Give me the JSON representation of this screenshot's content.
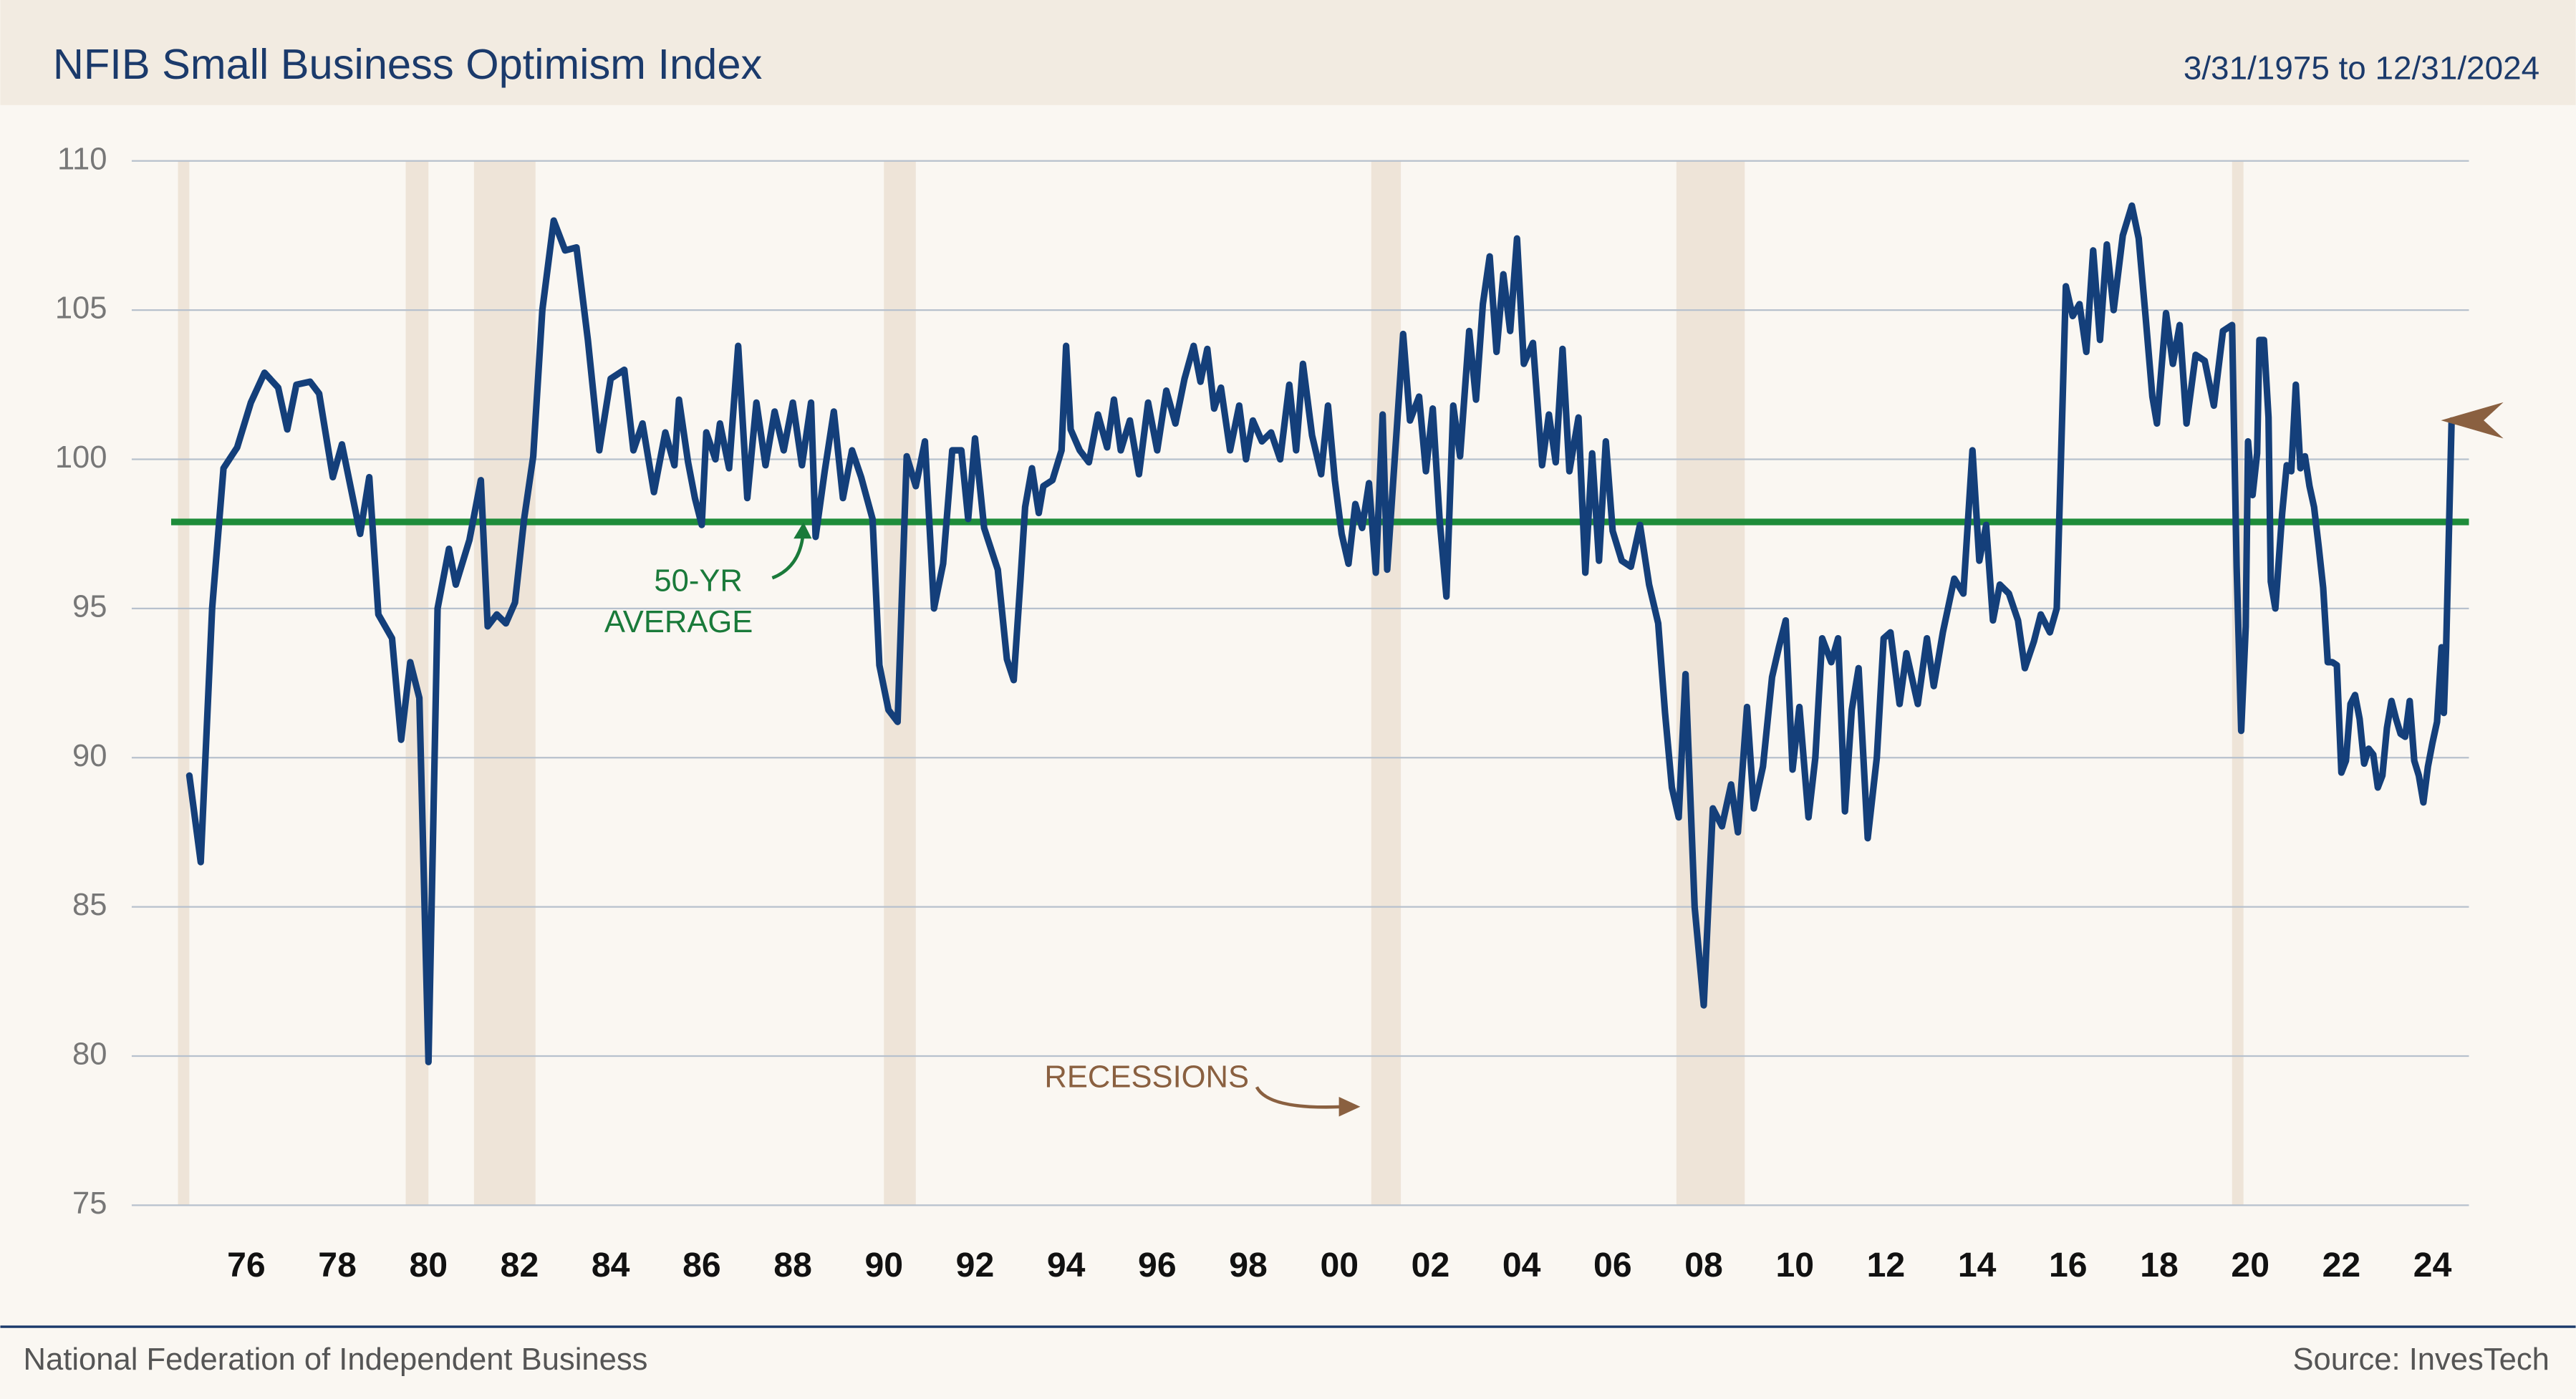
{
  "chart_data": {
    "type": "line",
    "title": "NFIB Small Business Optimism Index",
    "subtitle": "3/31/1975 to 12/31/2024",
    "source_left": "National Federation of Independent Business",
    "source_right": "Source: InvesTech",
    "annotations": [
      "50-YR",
      "AVERAGE",
      "RECESSIONS"
    ],
    "color": "#143f7a",
    "average": 97.9,
    "average_color": "#1e8c3a",
    "recessions": [
      [
        1975.0,
        1975.25
      ],
      [
        1980.0,
        1980.5
      ],
      [
        1981.5,
        1982.85
      ],
      [
        1990.5,
        1991.2
      ],
      [
        2001.2,
        2001.85
      ],
      [
        2007.9,
        2009.4
      ],
      [
        2020.1,
        2020.35
      ]
    ],
    "grid": true,
    "xlim": [
      1974.85,
      2025.3
    ],
    "ylim": [
      75,
      110
    ],
    "yticks": [
      75,
      80,
      85,
      90,
      95,
      100,
      105,
      110
    ],
    "xticks": [
      {
        "value": 1976,
        "label": "76"
      },
      {
        "value": 1978,
        "label": "78"
      },
      {
        "value": 1980,
        "label": "80"
      },
      {
        "value": 1982,
        "label": "82"
      },
      {
        "value": 1984,
        "label": "84"
      },
      {
        "value": 1986,
        "label": "86"
      },
      {
        "value": 1988,
        "label": "88"
      },
      {
        "value": 1990,
        "label": "90"
      },
      {
        "value": 1992,
        "label": "92"
      },
      {
        "value": 1994,
        "label": "94"
      },
      {
        "value": 1996,
        "label": "96"
      },
      {
        "value": 1998,
        "label": "98"
      },
      {
        "value": 2000,
        "label": "00"
      },
      {
        "value": 2002,
        "label": "02"
      },
      {
        "value": 2004,
        "label": "04"
      },
      {
        "value": 2006,
        "label": "06"
      },
      {
        "value": 2008,
        "label": "08"
      },
      {
        "value": 2010,
        "label": "10"
      },
      {
        "value": 2012,
        "label": "12"
      },
      {
        "value": 2014,
        "label": "14"
      },
      {
        "value": 2016,
        "label": "16"
      },
      {
        "value": 2018,
        "label": "18"
      },
      {
        "value": 2020,
        "label": "20"
      },
      {
        "value": 2022,
        "label": "22"
      },
      {
        "value": 2024,
        "label": "24"
      }
    ],
    "x": [
      1975.25,
      1975.5,
      1975.75,
      1976.0,
      1976.3,
      1976.6,
      1976.9,
      1977.2,
      1977.4,
      1977.6,
      1977.9,
      1978.1,
      1978.4,
      1978.6,
      1979.0,
      1979.2,
      1979.4,
      1979.7,
      1979.9,
      1980.1,
      1980.3,
      1980.5,
      1980.7,
      1980.95,
      1981.1,
      1981.4,
      1981.65,
      1981.8,
      1982.0,
      1982.2,
      1982.4,
      1982.6,
      1982.8,
      1983.0,
      1983.25,
      1983.5,
      1983.75,
      1984.0,
      1984.25,
      1984.5,
      1984.8,
      1985.0,
      1985.2,
      1985.45,
      1985.7,
      1985.9,
      1986.0,
      1986.2,
      1986.35,
      1986.5,
      1986.6,
      1986.8,
      1986.9,
      1987.1,
      1987.3,
      1987.5,
      1987.7,
      1987.9,
      1988.1,
      1988.3,
      1988.5,
      1988.7,
      1988.9,
      1989.0,
      1989.2,
      1989.4,
      1989.6,
      1989.8,
      1990.0,
      1990.25,
      1990.4,
      1990.6,
      1990.8,
      1991.0,
      1991.2,
      1991.4,
      1991.6,
      1991.8,
      1992.0,
      1992.2,
      1992.35,
      1992.5,
      1992.7,
      1993.0,
      1993.2,
      1993.35,
      1993.5,
      1993.6,
      1993.75,
      1993.9,
      1994.0,
      1994.2,
      1994.4,
      1994.5,
      1994.6,
      1994.8,
      1995.0,
      1995.2,
      1995.4,
      1995.55,
      1995.7,
      1995.9,
      1996.1,
      1996.3,
      1996.5,
      1996.7,
      1996.9,
      1997.1,
      1997.3,
      1997.45,
      1997.6,
      1997.75,
      1997.9,
      1998.1,
      1998.3,
      1998.45,
      1998.6,
      1998.8,
      1999.0,
      1999.2,
      1999.4,
      1999.55,
      1999.7,
      1999.9,
      2000.1,
      2000.25,
      2000.4,
      2000.55,
      2000.7,
      2000.85,
      2001.0,
      2001.15,
      2001.3,
      2001.45,
      2001.55,
      2001.75,
      2001.9,
      2002.05,
      2002.25,
      2002.4,
      2002.55,
      2002.7,
      2002.85,
      2003.0,
      2003.15,
      2003.35,
      2003.5,
      2003.65,
      2003.8,
      2003.95,
      2004.1,
      2004.25,
      2004.4,
      2004.55,
      2004.75,
      2004.95,
      2005.1,
      2005.25,
      2005.4,
      2005.55,
      2005.75,
      2005.9,
      2006.05,
      2006.2,
      2006.35,
      2006.5,
      2006.7,
      2006.9,
      2007.1,
      2007.3,
      2007.5,
      2007.65,
      2007.8,
      2007.95,
      2008.1,
      2008.3,
      2008.5,
      2008.7,
      2008.9,
      2009.1,
      2009.25,
      2009.45,
      2009.6,
      2009.8,
      2010.0,
      2010.15,
      2010.3,
      2010.45,
      2010.6,
      2010.8,
      2010.95,
      2011.1,
      2011.3,
      2011.45,
      2011.6,
      2011.75,
      2011.9,
      2012.1,
      2012.3,
      2012.45,
      2012.6,
      2012.8,
      2012.95,
      2013.2,
      2013.4,
      2013.55,
      2013.75,
      2014.0,
      2014.2,
      2014.4,
      2014.55,
      2014.7,
      2014.85,
      2015.0,
      2015.2,
      2015.4,
      2015.55,
      2015.75,
      2015.9,
      2016.1,
      2016.25,
      2016.45,
      2016.6,
      2016.75,
      2016.9,
      2017.05,
      2017.2,
      2017.35,
      2017.5,
      2017.7,
      2017.9,
      2018.05,
      2018.2,
      2018.35,
      2018.45,
      2018.65,
      2018.8,
      2018.95,
      2019.1,
      2019.3,
      2019.5,
      2019.7,
      2019.9,
      2020.1,
      2020.2,
      2020.3,
      2020.4,
      2020.45,
      2020.55,
      2020.65,
      2020.7,
      2020.8,
      2020.9,
      2020.95,
      2021.05,
      2021.2,
      2021.3,
      2021.4,
      2021.5,
      2021.6,
      2021.7,
      2021.8,
      2021.9,
      2022.0,
      2022.1,
      2022.2,
      2022.3,
      2022.4,
      2022.5,
      2022.6,
      2022.7,
      2022.8,
      2022.9,
      2023.0,
      2023.1,
      2023.2,
      2023.3,
      2023.4,
      2023.5,
      2023.6,
      2023.7,
      2023.8,
      2023.9,
      2024.0,
      2024.1,
      2024.2,
      2024.3,
      2024.4,
      2024.5,
      2024.6,
      2024.7,
      2024.75,
      2024.8,
      2024.92
    ],
    "values": [
      89.4,
      86.5,
      95,
      99.7,
      100.4,
      101.9,
      102.9,
      102.4,
      101,
      102.5,
      102.6,
      102.2,
      99.4,
      100.5,
      97.5,
      99.4,
      94.8,
      94,
      90.6,
      93.2,
      92,
      79.8,
      95,
      97,
      95.8,
      97.3,
      99.3,
      94.4,
      94.8,
      94.5,
      95.2,
      98,
      100.1,
      105,
      108,
      107,
      107.1,
      104,
      100.3,
      102.7,
      103,
      100.3,
      101.2,
      98.9,
      100.9,
      99.8,
      102,
      99.9,
      98.7,
      97.8,
      100.9,
      100,
      101.2,
      99.7,
      103.8,
      98.7,
      101.9,
      99.8,
      101.6,
      100.3,
      101.9,
      99.8,
      101.9,
      97.4,
      99.6,
      101.6,
      98.7,
      100.3,
      99.4,
      98,
      93.1,
      91.6,
      91.2,
      100.1,
      99.1,
      100.6,
      95,
      96.5,
      100.3,
      100.3,
      98,
      100.7,
      97.7,
      96.3,
      93.3,
      92.6,
      96,
      98.4,
      99.7,
      98.2,
      99.1,
      99.3,
      100.3,
      103.8,
      101,
      100.3,
      99.9,
      101.5,
      100.4,
      102,
      100.3,
      101.3,
      99.5,
      101.9,
      100.3,
      102.3,
      101.2,
      102.7,
      103.8,
      102.6,
      103.7,
      101.7,
      102.4,
      100.3,
      101.8,
      100,
      101.3,
      100.6,
      100.9,
      100,
      102.5,
      100.3,
      103.2,
      100.8,
      99.5,
      101.8,
      99.3,
      97.5,
      96.5,
      98.5,
      97.7,
      99.2,
      96.2,
      101.5,
      96.3,
      100.8,
      104.2,
      101.3,
      102.1,
      99.6,
      101.7,
      98,
      95.4,
      101.8,
      100.1,
      104.3,
      102,
      105.2,
      106.8,
      103.6,
      106.2,
      104.3,
      107.4,
      103.2,
      103.9,
      99.8,
      101.5,
      99.9,
      103.7,
      99.6,
      101.4,
      96.2,
      100.2,
      96.6,
      100.6,
      97.6,
      96.6,
      96.4,
      97.8,
      95.8,
      94.5,
      91.5,
      89,
      88,
      92.8,
      85,
      81.7,
      88.3,
      87.7,
      89.1,
      87.5,
      91.7,
      88.3,
      89.7,
      92.7,
      93.7,
      94.6,
      89.6,
      91.7,
      88,
      90,
      94,
      93.2,
      94,
      88.2,
      91.6,
      93,
      87.3,
      90,
      94,
      94.2,
      91.8,
      93.5,
      91.8,
      94,
      92.4,
      94.2,
      96,
      95.5,
      100.3,
      96.6,
      97.8,
      94.6,
      95.8,
      95.5,
      94.6,
      93,
      93.9,
      94.8,
      94.2,
      95,
      105.8,
      104.8,
      105.2,
      103.6,
      107,
      104,
      107.2,
      105,
      107.5,
      108.5,
      107.4,
      104.8,
      102.1,
      101.2,
      104.9,
      103.2,
      104.5,
      101.2,
      103.5,
      103.3,
      101.8,
      104.3,
      104.5,
      96.4,
      90.9,
      94.4,
      100.6,
      98.8,
      100.2,
      104,
      104,
      101.4,
      95.9,
      95,
      98.2,
      99.8,
      99.6,
      102.5,
      99.7,
      100.1,
      99.1,
      98.4,
      97.1,
      95.7,
      93.2,
      93.2,
      93.1,
      89.5,
      89.9,
      91.8,
      92.1,
      91.3,
      89.8,
      90.3,
      90.1,
      89,
      89.4,
      91,
      91.9,
      91.3,
      90.8,
      90.7,
      91.9,
      89.9,
      89.4,
      88.5,
      89.7,
      90.5,
      91.2,
      93.7,
      91.5,
      93.7,
      101.3
    ]
  }
}
